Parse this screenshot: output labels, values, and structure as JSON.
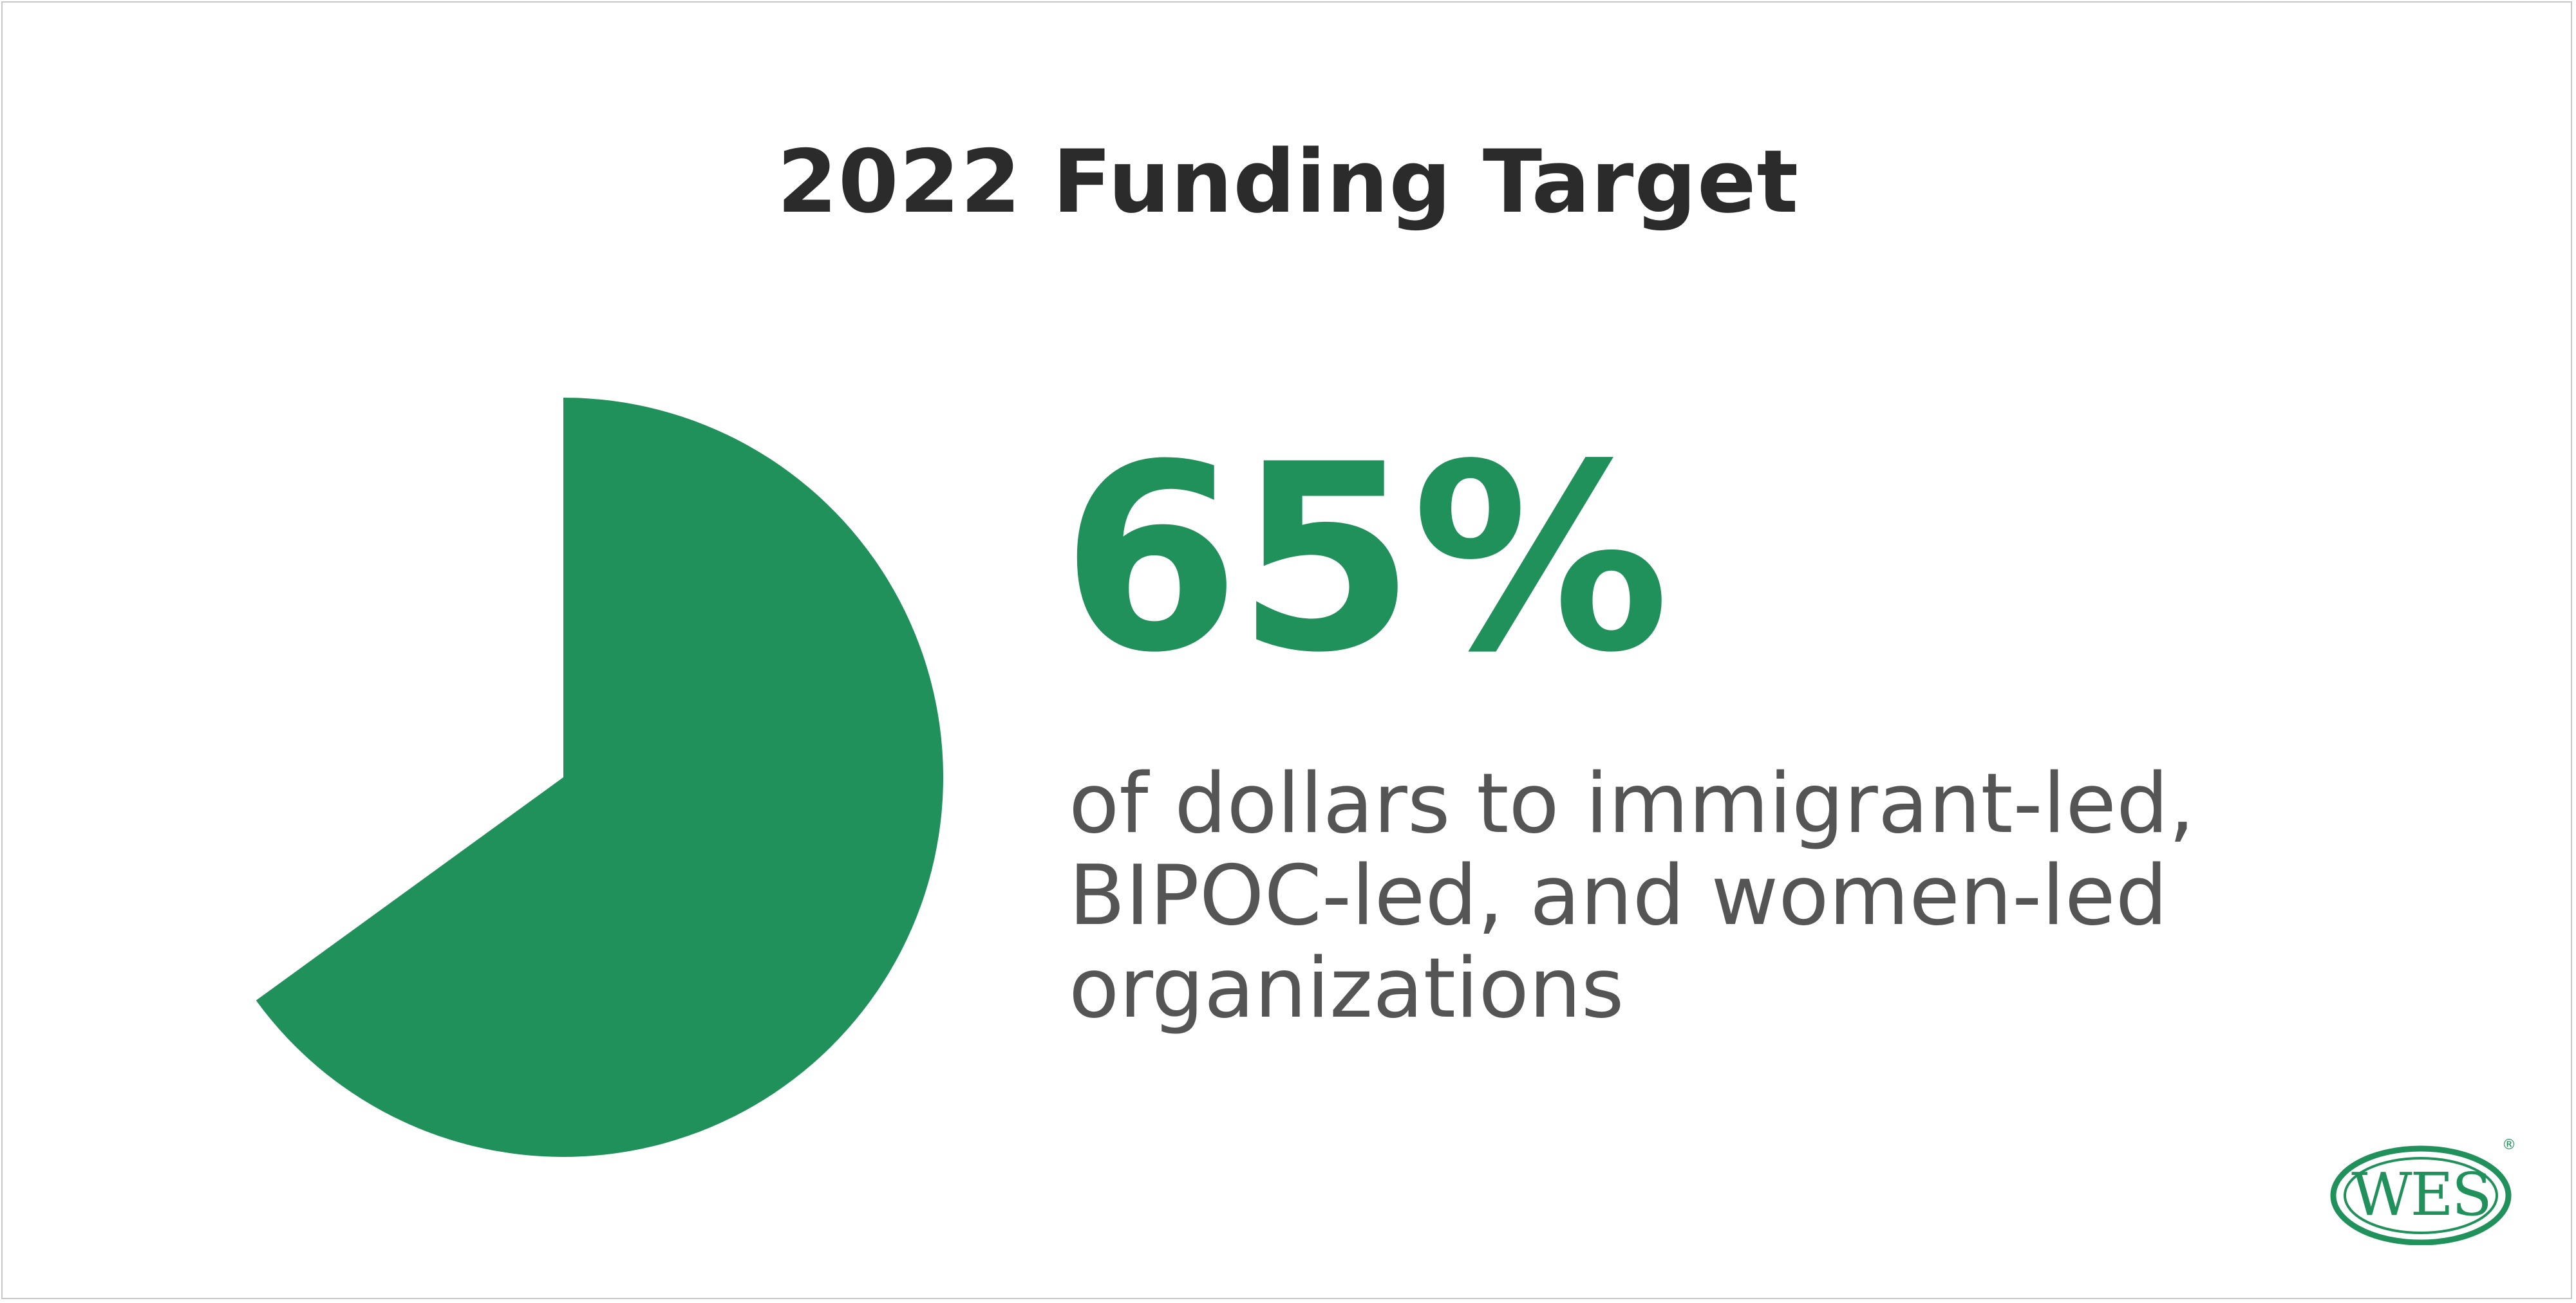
{
  "colors": {
    "accent": "#20915A",
    "title_text": "#2b2b2b",
    "body_text": "#555555",
    "border": "#c8c8c8",
    "background": "#ffffff"
  },
  "title": "2022 Funding Target",
  "highlight": {
    "value": "65%",
    "description_lines": [
      "of dollars to immigrant-led,",
      "BIPOC-led, and women-led",
      "organizations"
    ]
  },
  "logo": {
    "text": "WES",
    "registered_mark": "®",
    "icon": "wes-logo"
  },
  "chart_data": {
    "type": "pie",
    "values": [
      65
    ],
    "unit": "%",
    "total": 100,
    "title": "2022 Funding Target"
  }
}
